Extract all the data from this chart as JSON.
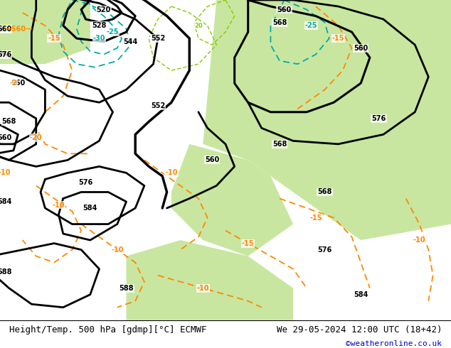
{
  "title_left": "Height/Temp. 500 hPa [gdmp][°C] ECMWF",
  "title_right": "We 29-05-2024 12:00 UTC (18+42)",
  "copyright": "©weatheronline.co.uk",
  "bg_color": "#c0c0c0",
  "green_bg": "#c8e6a0",
  "contour_black": "#000000",
  "contour_orange": "#ff8800",
  "contour_cyan": "#00aaaa",
  "contour_green": "#88cc00",
  "fig_width": 6.34,
  "fig_height": 4.9,
  "dpi": 100,
  "bottom_text_color": "#000000",
  "copyright_color": "#0000cc",
  "font_size_bottom": 9,
  "font_size_labels": 7
}
